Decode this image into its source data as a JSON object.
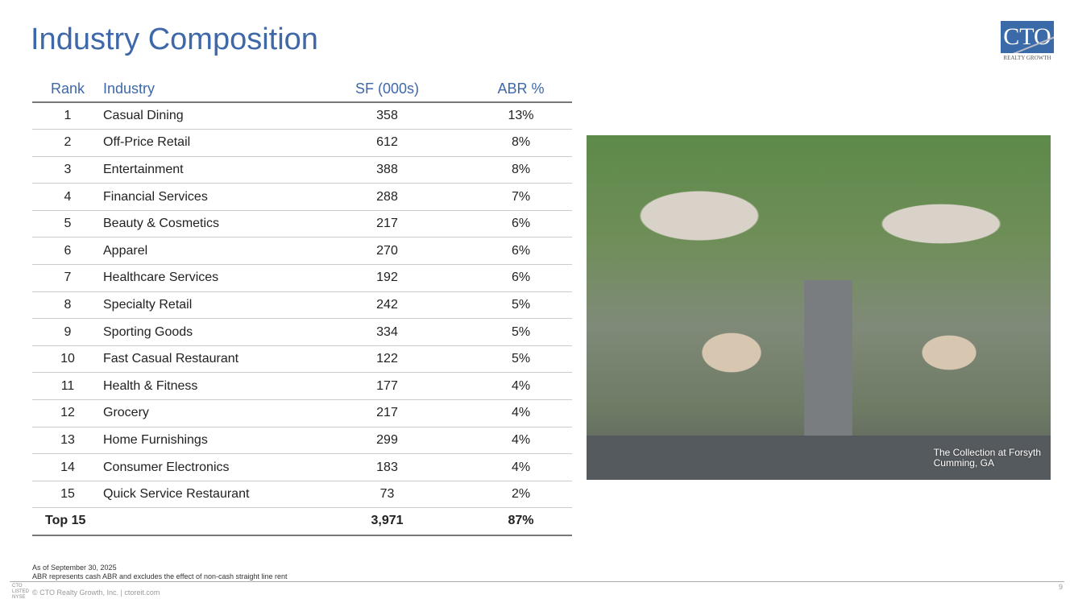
{
  "title": "Industry Composition",
  "logo": {
    "text": "CTO",
    "sub": "REALTY GROWTH"
  },
  "table": {
    "headers": [
      "Rank",
      "Industry",
      "SF (000s)",
      "ABR %"
    ],
    "rows": [
      [
        "1",
        "Casual Dining",
        "358",
        "13%"
      ],
      [
        "2",
        "Off-Price Retail",
        "612",
        "8%"
      ],
      [
        "3",
        "Entertainment",
        "388",
        "8%"
      ],
      [
        "4",
        "Financial Services",
        "288",
        "7%"
      ],
      [
        "5",
        "Beauty & Cosmetics",
        "217",
        "6%"
      ],
      [
        "6",
        "Apparel",
        "270",
        "6%"
      ],
      [
        "7",
        "Healthcare Services",
        "192",
        "6%"
      ],
      [
        "8",
        "Specialty Retail",
        "242",
        "5%"
      ],
      [
        "9",
        "Sporting Goods",
        "334",
        "5%"
      ],
      [
        "10",
        "Fast Casual Restaurant",
        "122",
        "5%"
      ],
      [
        "11",
        "Health & Fitness",
        "177",
        "4%"
      ],
      [
        "12",
        "Grocery",
        "217",
        "4%"
      ],
      [
        "13",
        "Home Furnishings",
        "299",
        "4%"
      ],
      [
        "14",
        "Consumer Electronics",
        "183",
        "4%"
      ],
      [
        "15",
        "Quick Service Restaurant",
        "73",
        "2%"
      ]
    ],
    "total": [
      "Top 15",
      "3,971",
      "87%"
    ]
  },
  "photo": {
    "caption": "The Collection at Forsyth",
    "location": "Cumming, GA"
  },
  "notes": [
    "As of September 30, 2025",
    "ABR represents cash ABR and excludes the effect of non-cash straight line rent"
  ],
  "footer": {
    "text": "© CTO Realty Growth, Inc. | ctoreit.com",
    "nyse": [
      "CTO",
      "LISTED",
      "NYSE"
    ],
    "page": "9"
  }
}
